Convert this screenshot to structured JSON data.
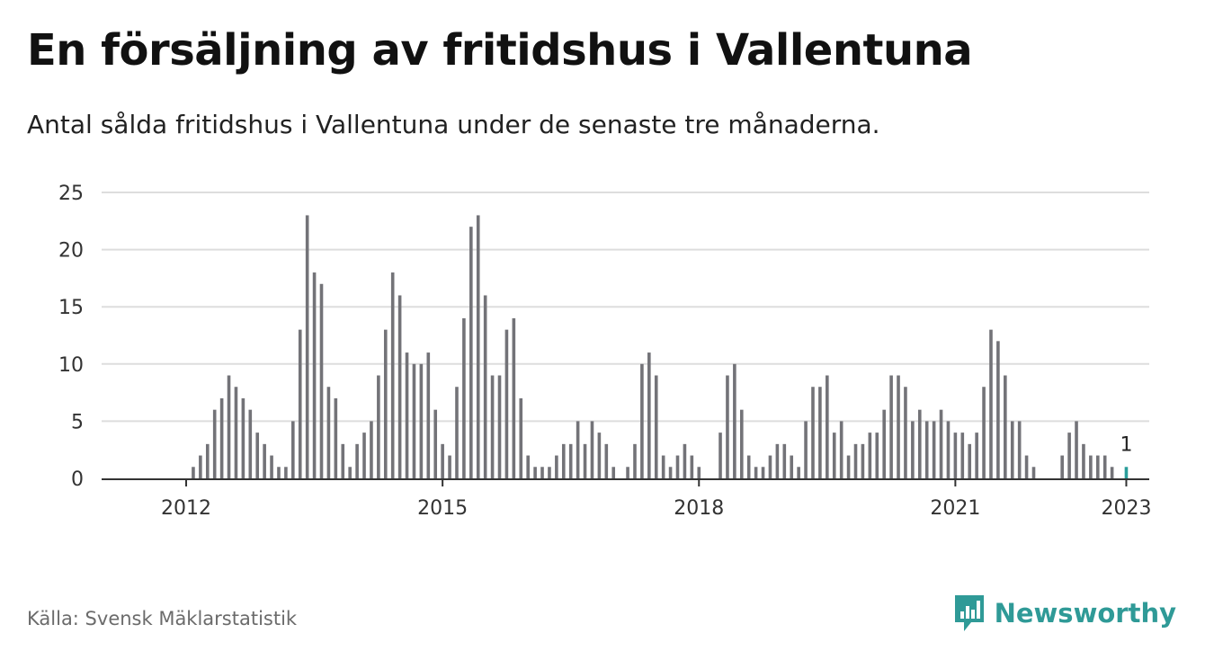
{
  "title": "En försäljning av fritidshus i Vallentuna",
  "subtitle": "Antal sålda fritidshus i Vallentuna under de senaste tre månaderna.",
  "source": "Källa: Svensk Mäklarstatistik",
  "brand": {
    "name": "Newsworthy",
    "icon": "newsworthy-logo-icon",
    "color": "#2f9a97"
  },
  "colors": {
    "bar": "#737378",
    "highlight": "#2a9d9a",
    "grid": "#dddddd",
    "axis": "#333333"
  },
  "chart_data": {
    "type": "bar",
    "ylim": [
      0,
      25
    ],
    "yticks": [
      0,
      5,
      10,
      15,
      20,
      25
    ],
    "xticks": [
      {
        "label": "2012",
        "x": "2012-02"
      },
      {
        "label": "2015",
        "x": "2015-02"
      },
      {
        "label": "2018",
        "x": "2018-02"
      },
      {
        "label": "2021",
        "x": "2021-02"
      },
      {
        "label": "2023",
        "x": "2023-02"
      }
    ],
    "grid": true,
    "annotation": {
      "x": "2023-02",
      "label": "1"
    },
    "x": [
      "2011-08",
      "2011-09",
      "2011-10",
      "2011-11",
      "2011-12",
      "2012-01",
      "2012-02",
      "2012-03",
      "2012-04",
      "2012-05",
      "2012-06",
      "2012-07",
      "2012-08",
      "2012-09",
      "2012-10",
      "2012-11",
      "2012-12",
      "2013-01",
      "2013-02",
      "2013-03",
      "2013-04",
      "2013-05",
      "2013-06",
      "2013-07",
      "2013-08",
      "2013-09",
      "2013-10",
      "2013-11",
      "2013-12",
      "2014-01",
      "2014-02",
      "2014-03",
      "2014-04",
      "2014-05",
      "2014-06",
      "2014-07",
      "2014-08",
      "2014-09",
      "2014-10",
      "2014-11",
      "2014-12",
      "2015-01",
      "2015-02",
      "2015-03",
      "2015-04",
      "2015-05",
      "2015-06",
      "2015-07",
      "2015-08",
      "2015-09",
      "2015-10",
      "2015-11",
      "2015-12",
      "2016-01",
      "2016-02",
      "2016-03",
      "2016-04",
      "2016-05",
      "2016-06",
      "2016-07",
      "2016-08",
      "2016-09",
      "2016-10",
      "2016-11",
      "2016-12",
      "2017-01",
      "2017-02",
      "2017-03",
      "2017-04",
      "2017-05",
      "2017-06",
      "2017-07",
      "2017-08",
      "2017-09",
      "2017-10",
      "2017-11",
      "2017-12",
      "2018-01",
      "2018-02",
      "2018-03",
      "2018-04",
      "2018-05",
      "2018-06",
      "2018-07",
      "2018-08",
      "2018-09",
      "2018-10",
      "2018-11",
      "2018-12",
      "2019-01",
      "2019-02",
      "2019-03",
      "2019-04",
      "2019-05",
      "2019-06",
      "2019-07",
      "2019-08",
      "2019-09",
      "2019-10",
      "2019-11",
      "2019-12",
      "2020-01",
      "2020-02",
      "2020-03",
      "2020-04",
      "2020-05",
      "2020-06",
      "2020-07",
      "2020-08",
      "2020-09",
      "2020-10",
      "2020-11",
      "2020-12",
      "2021-01",
      "2021-02",
      "2021-03",
      "2021-04",
      "2021-05",
      "2021-06",
      "2021-07",
      "2021-08",
      "2021-09",
      "2021-10",
      "2021-11",
      "2021-12",
      "2022-01",
      "2022-02",
      "2022-03",
      "2022-04",
      "2022-05",
      "2022-06",
      "2022-07",
      "2022-08",
      "2022-09",
      "2022-10",
      "2022-11",
      "2022-12",
      "2023-01",
      "2023-02"
    ],
    "values": [
      0,
      0,
      0,
      0,
      0,
      0,
      0,
      1,
      2,
      3,
      6,
      7,
      9,
      8,
      7,
      6,
      4,
      3,
      2,
      1,
      1,
      5,
      13,
      23,
      18,
      17,
      8,
      7,
      3,
      1,
      3,
      4,
      5,
      9,
      13,
      18,
      16,
      11,
      10,
      10,
      11,
      6,
      3,
      2,
      8,
      14,
      22,
      23,
      16,
      9,
      9,
      13,
      14,
      7,
      2,
      1,
      1,
      1,
      2,
      3,
      3,
      5,
      3,
      5,
      4,
      3,
      1,
      0,
      1,
      3,
      10,
      11,
      9,
      2,
      1,
      2,
      3,
      2,
      1,
      0,
      0,
      4,
      9,
      10,
      6,
      2,
      1,
      1,
      2,
      3,
      3,
      2,
      1,
      5,
      8,
      8,
      9,
      4,
      5,
      2,
      3,
      3,
      4,
      4,
      6,
      9,
      9,
      8,
      5,
      6,
      5,
      5,
      6,
      5,
      4,
      4,
      3,
      4,
      8,
      13,
      12,
      9,
      5,
      5,
      2,
      1,
      0,
      0,
      0,
      2,
      4,
      5,
      3,
      2,
      2,
      2,
      1,
      0,
      1
    ]
  }
}
